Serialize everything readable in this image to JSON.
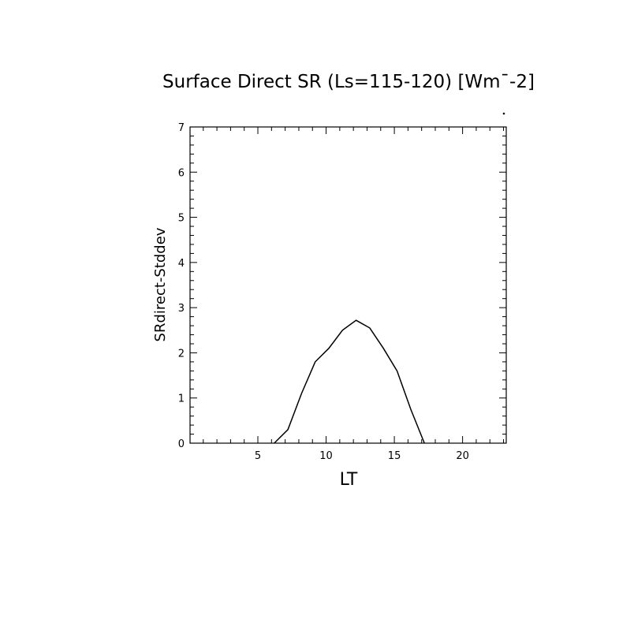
{
  "chart_data": {
    "type": "line",
    "title": "Surface Direct SR (Ls=115-120) [Wm¯-2]",
    "xlabel": "LT",
    "ylabel": "SRdirect-Stddev",
    "xlim": [
      0.03,
      23.2
    ],
    "ylim": [
      0,
      7
    ],
    "x_ticks": [
      "5",
      "10",
      "15",
      "20"
    ],
    "y_ticks": [
      "0",
      "1",
      "2",
      "3",
      "4",
      "5",
      "6",
      "7"
    ],
    "grid": false,
    "series": [
      {
        "x": [
          6.2,
          7.2,
          8.2,
          9.2,
          10.2,
          11.2,
          12.2,
          13.2,
          14.2,
          15.2,
          16.2,
          17.2
        ],
        "values": [
          0.0,
          0.3,
          1.1,
          1.8,
          2.1,
          2.5,
          2.72,
          2.55,
          2.1,
          1.6,
          0.75,
          0.0
        ]
      }
    ]
  }
}
